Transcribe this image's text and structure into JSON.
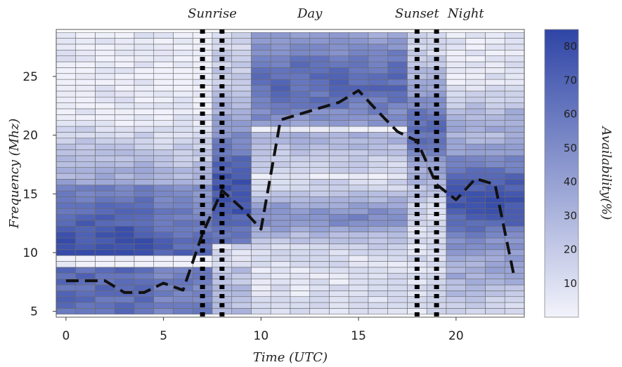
{
  "chart_data": {
    "type": "heatmap",
    "title": "",
    "xlabel": "Time (UTC)",
    "ylabel": "Frequency (Mhz)",
    "colorbar_label": "Availability(%)",
    "xlim": [
      -0.5,
      23.5
    ],
    "ylim": [
      4.5,
      29
    ],
    "colorbar_range": [
      0,
      85
    ],
    "x_ticks": [
      0,
      5,
      10,
      15,
      20
    ],
    "y_ticks": [
      5,
      10,
      15,
      20,
      25
    ],
    "colorbar_ticks": [
      10,
      20,
      30,
      40,
      50,
      60,
      70,
      80
    ],
    "color_low": "#f2f3fb",
    "color_high": "#2f45a6",
    "cell_hours": [
      0,
      1,
      2,
      3,
      4,
      5,
      6,
      7,
      8,
      9,
      10,
      11,
      12,
      13,
      14,
      15,
      16,
      17,
      18,
      19,
      20,
      21,
      22,
      23
    ],
    "cell_frequency_range_mhz": [
      5,
      28.5
    ],
    "cell_frequency_step_mhz": 0.5,
    "period_labels": [
      {
        "text": "Sunrise",
        "x": 7.5
      },
      {
        "text": "Day",
        "x": 12.5
      },
      {
        "text": "Sunset",
        "x": 18
      },
      {
        "text": "Night",
        "x": 20.5
      }
    ],
    "dotted_lines_x": [
      7,
      8,
      18,
      19
    ],
    "series": [
      {
        "style": "dashed",
        "x": [
          0,
          1,
          2,
          3,
          4,
          5,
          6,
          7,
          8,
          9,
          10,
          11,
          12,
          13,
          14,
          15,
          16,
          17,
          18,
          19,
          20,
          21,
          22,
          23
        ],
        "values": [
          7.6,
          7.6,
          7.6,
          6.6,
          6.6,
          7.4,
          6.8,
          11.6,
          15.3,
          13.8,
          12.0,
          21.3,
          21.8,
          22.3,
          22.8,
          23.8,
          22.0,
          20.3,
          19.5,
          15.8,
          14.5,
          16.3,
          15.8,
          7.8
        ]
      }
    ]
  }
}
